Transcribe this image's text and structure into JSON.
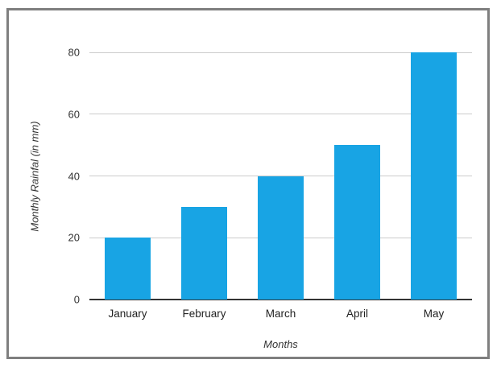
{
  "chart_data": {
    "type": "bar",
    "categories": [
      "January",
      "February",
      "March",
      "April",
      "May"
    ],
    "values": [
      20,
      30,
      40,
      50,
      80
    ],
    "title": "",
    "xlabel": "Months",
    "ylabel": "Monthly Rainfal (in mm)",
    "ylim": [
      0,
      80
    ],
    "yticks": [
      0,
      20,
      40,
      60,
      80
    ],
    "grid": "horizontal-only",
    "legend_position": "none",
    "bar_color": "#18a4e4",
    "gridline_color": "#cccccc",
    "axis_line_color": "#333333",
    "tick_label_color": "#333333",
    "frame_border_color": "#7f7f7f",
    "background_color": "#ffffff"
  }
}
